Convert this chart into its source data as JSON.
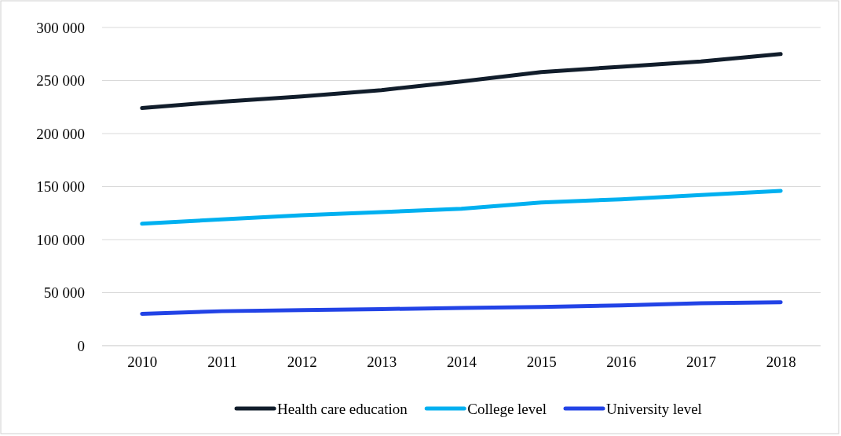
{
  "chart_data": {
    "type": "line",
    "categories": [
      "2010",
      "2011",
      "2012",
      "2013",
      "2014",
      "2015",
      "2016",
      "2017",
      "2018"
    ],
    "series": [
      {
        "name": "Health care education",
        "color": "#111d2b",
        "values": [
          224000,
          230000,
          235000,
          241000,
          249000,
          258000,
          263000,
          268000,
          275000
        ]
      },
      {
        "name": "College level",
        "color": "#00b0f0",
        "values": [
          115000,
          119000,
          123000,
          126000,
          129000,
          135000,
          138000,
          142000,
          146000
        ]
      },
      {
        "name": "University level",
        "color": "#2243e6",
        "values": [
          30000,
          32500,
          33500,
          34500,
          35500,
          36500,
          38000,
          40000,
          41000
        ]
      }
    ],
    "ylim": [
      0,
      300000
    ],
    "yticks": [
      0,
      {
        "value": 50000,
        "label": "50 000"
      },
      {
        "value": 100000,
        "label": "100 000"
      },
      {
        "value": 150000,
        "label": "150 000"
      },
      {
        "value": 200000,
        "label": "200 000"
      },
      {
        "value": 250000,
        "label": "250 000"
      },
      {
        "value": 300000,
        "label": "300 000"
      }
    ],
    "grid": "y",
    "legend": "bottom",
    "marker": "none",
    "line_style": "solid"
  }
}
